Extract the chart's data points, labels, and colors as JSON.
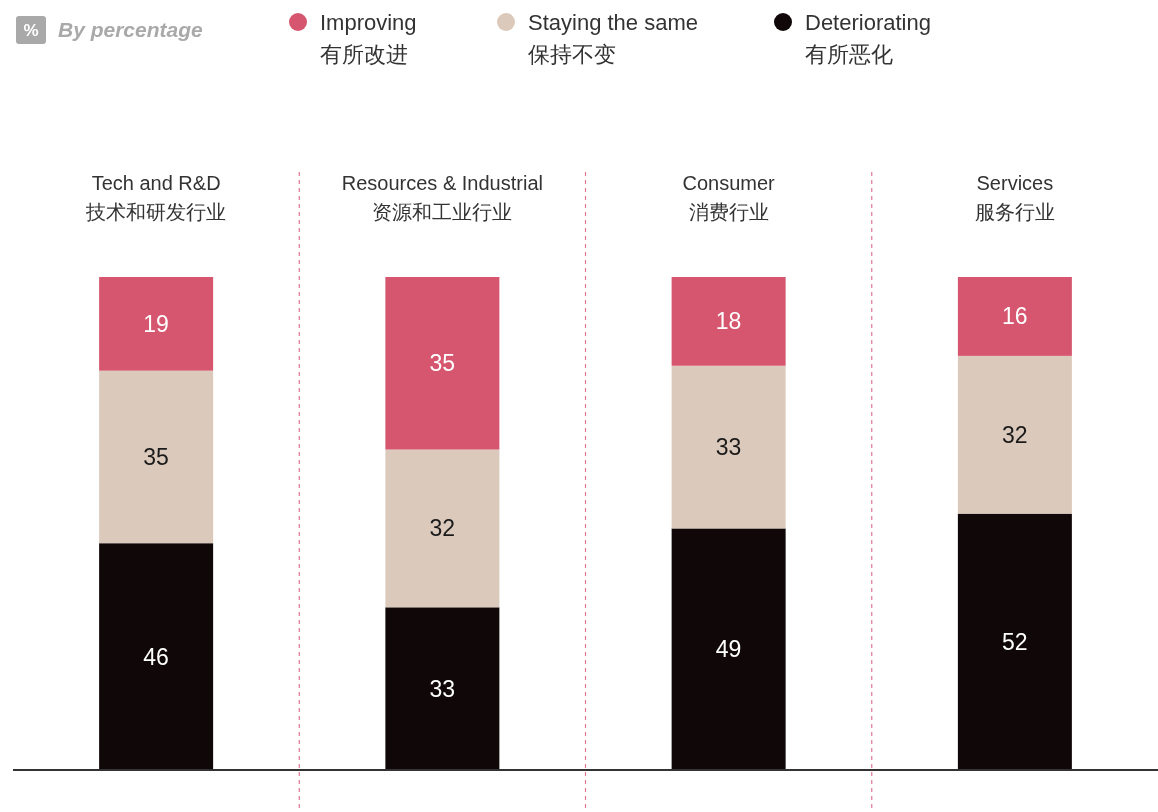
{
  "chart_data": {
    "type": "bar",
    "stacked": true,
    "subtitle": "By percentage",
    "annotations": [
      "%"
    ],
    "categories": [
      "Tech and R&D\n技术和研发行业",
      "Resources & Industrial\n资源和工业行业",
      "Consumer\n消费行业",
      "Services\n服务行业"
    ],
    "series": [
      {
        "name": "Deteriorating\n有所恶化",
        "color": "#100808",
        "values": [
          46,
          33,
          49,
          52
        ]
      },
      {
        "name": "Staying the same\n保持不变",
        "color": "#dbcabc",
        "values": [
          35,
          32,
          33,
          32
        ]
      },
      {
        "name": "Improving\n有所改进",
        "color": "#d5566e",
        "values": [
          19,
          35,
          18,
          16
        ]
      }
    ],
    "ylim": [
      0,
      100
    ],
    "data_labels": true,
    "legend": "top",
    "tick_labels": "x"
  }
}
